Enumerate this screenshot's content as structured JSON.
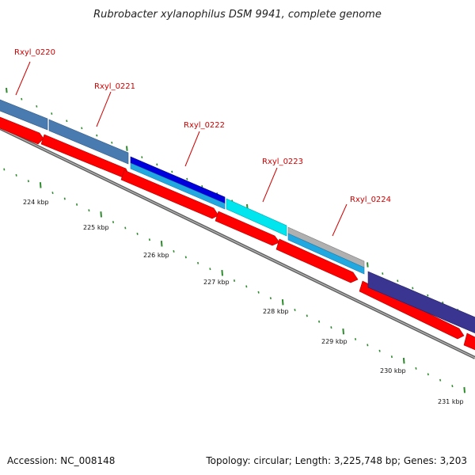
{
  "title": "Rubrobacter xylanophilus DSM 9941, complete genome",
  "accession": "Accession: NC_008148",
  "summary": "Topology: circular; Length: 3,225,748 bp; Genes: 3,203",
  "colors": {
    "backbone": "#808080",
    "cds": "#ff0000",
    "gene_label": "#d10000",
    "tick": "#2e8b2e"
  },
  "genes": [
    {
      "id": "Rxyl_0220",
      "color": "#4a7bb0"
    },
    {
      "id": "Rxyl_0221",
      "color": "#4a7bb0"
    },
    {
      "id": "Rxyl_0222",
      "color": "#0000dd"
    },
    {
      "id": "Rxyl_0223",
      "color": "#00e5ee"
    },
    {
      "id": "Rxyl_0224",
      "color": "#b0b0b0"
    },
    {
      "id": "",
      "color": "#3a3590"
    }
  ],
  "scale_labels": [
    "224 kbp",
    "225 kbp",
    "226 kbp",
    "227 kbp",
    "228 kbp",
    "229 kbp",
    "230 kbp",
    "231 kbp"
  ]
}
